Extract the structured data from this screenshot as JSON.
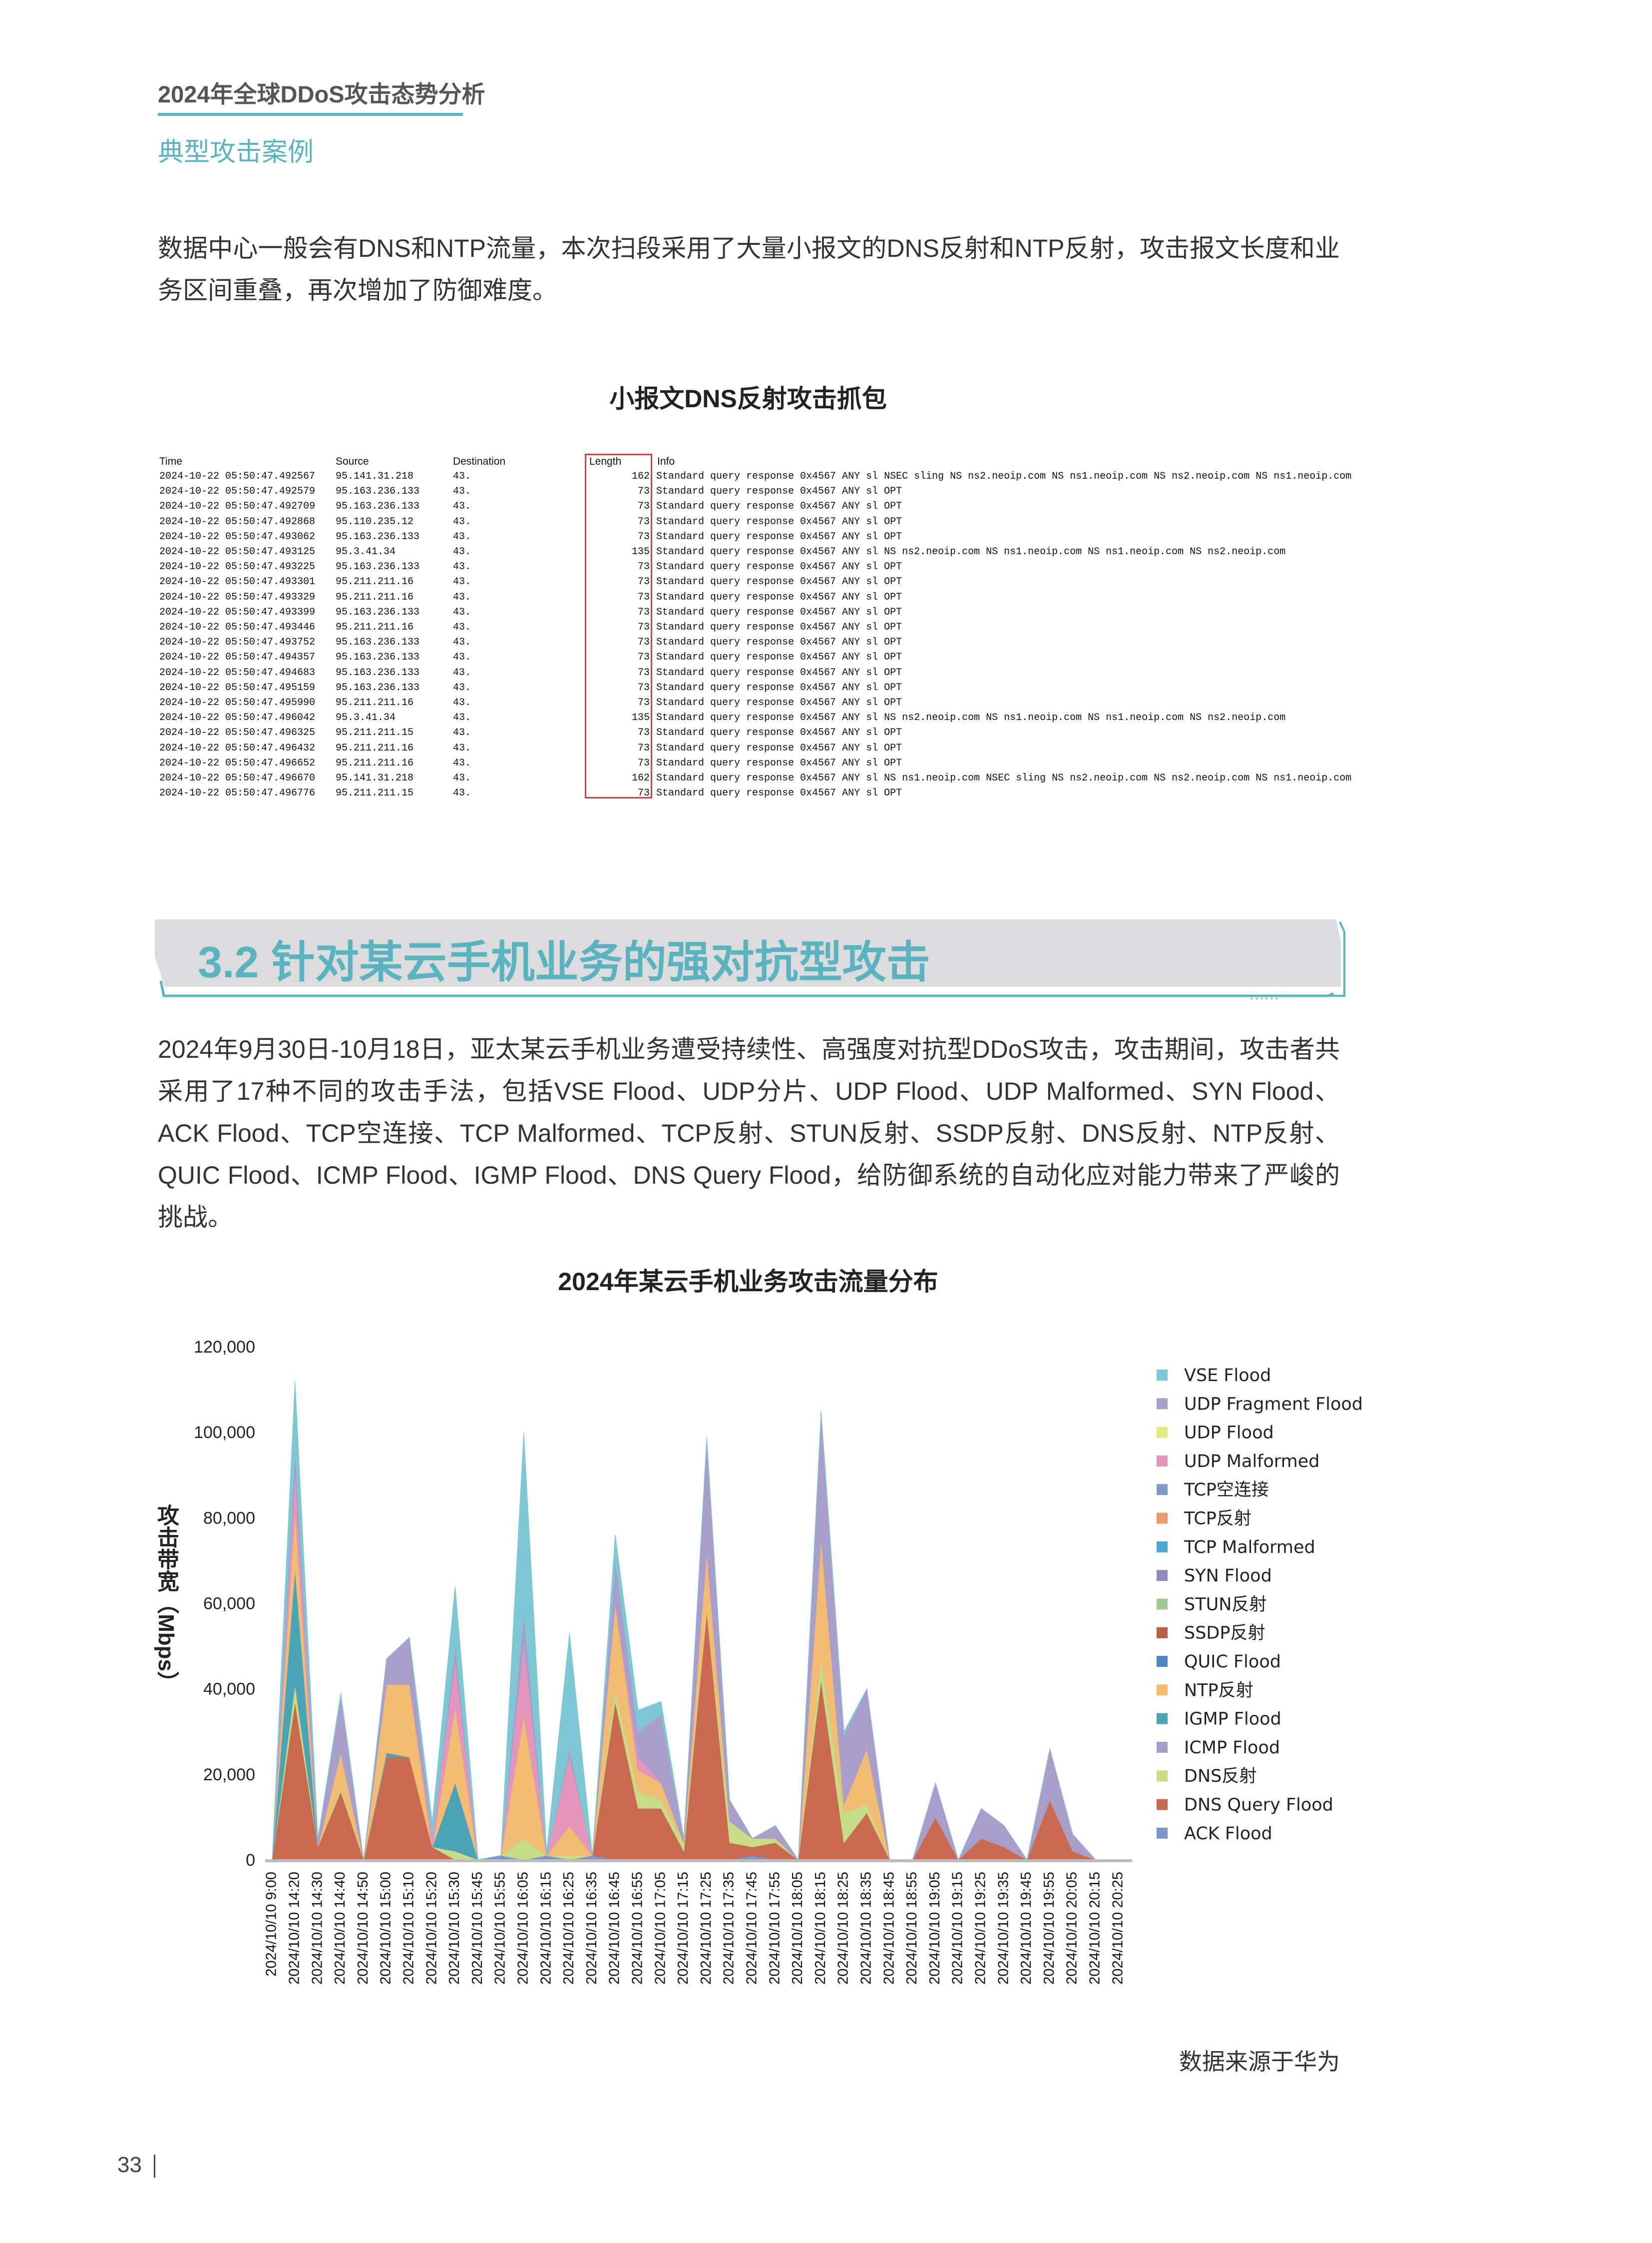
{
  "header": {
    "report_title": "2024年全球DDoS攻击态势分析",
    "section": "典型攻击案例",
    "accent_color": "#5ab4c0"
  },
  "intro_paragraph": "数据中心一般会有DNS和NTP流量，本次扫段采用了大量小报文的DNS反射和NTP反射，攻击报文长度和业务区间重叠，再次增加了防御难度。",
  "capture": {
    "title": "小报文DNS反射攻击抓包",
    "columns": [
      "Time",
      "Source",
      "Destination",
      "Length",
      "Info"
    ],
    "rows": [
      [
        "2024-10-22 05:50:47.492567",
        "95.141.31.218",
        "43.",
        "162",
        "Standard query response 0x4567 ANY sl NSEC sling NS ns2.neoip.com NS ns1.neoip.com NS ns2.neoip.com NS ns1.neoip.com"
      ],
      [
        "2024-10-22 05:50:47.492579",
        "95.163.236.133",
        "43.",
        "73",
        "Standard query response 0x4567 ANY sl OPT"
      ],
      [
        "2024-10-22 05:50:47.492709",
        "95.163.236.133",
        "43.",
        "73",
        "Standard query response 0x4567 ANY sl OPT"
      ],
      [
        "2024-10-22 05:50:47.492868",
        "95.110.235.12",
        "43.",
        "73",
        "Standard query response 0x4567 ANY sl OPT"
      ],
      [
        "2024-10-22 05:50:47.493062",
        "95.163.236.133",
        "43.",
        "73",
        "Standard query response 0x4567 ANY sl OPT"
      ],
      [
        "2024-10-22 05:50:47.493125",
        "95.3.41.34",
        "43.",
        "135",
        "Standard query response 0x4567 ANY sl NS ns2.neoip.com NS ns1.neoip.com NS ns1.neoip.com NS ns2.neoip.com"
      ],
      [
        "2024-10-22 05:50:47.493225",
        "95.163.236.133",
        "43.",
        "73",
        "Standard query response 0x4567 ANY sl OPT"
      ],
      [
        "2024-10-22 05:50:47.493301",
        "95.211.211.16",
        "43.",
        "73",
        "Standard query response 0x4567 ANY sl OPT"
      ],
      [
        "2024-10-22 05:50:47.493329",
        "95.211.211.16",
        "43.",
        "73",
        "Standard query response 0x4567 ANY sl OPT"
      ],
      [
        "2024-10-22 05:50:47.493399",
        "95.163.236.133",
        "43.",
        "73",
        "Standard query response 0x4567 ANY sl OPT"
      ],
      [
        "2024-10-22 05:50:47.493446",
        "95.211.211.16",
        "43.",
        "73",
        "Standard query response 0x4567 ANY sl OPT"
      ],
      [
        "2024-10-22 05:50:47.493752",
        "95.163.236.133",
        "43.",
        "73",
        "Standard query response 0x4567 ANY sl OPT"
      ],
      [
        "2024-10-22 05:50:47.494357",
        "95.163.236.133",
        "43.",
        "73",
        "Standard query response 0x4567 ANY sl OPT"
      ],
      [
        "2024-10-22 05:50:47.494683",
        "95.163.236.133",
        "43.",
        "73",
        "Standard query response 0x4567 ANY sl OPT"
      ],
      [
        "2024-10-22 05:50:47.495159",
        "95.163.236.133",
        "43.",
        "73",
        "Standard query response 0x4567 ANY sl OPT"
      ],
      [
        "2024-10-22 05:50:47.495990",
        "95.211.211.16",
        "43.",
        "73",
        "Standard query response 0x4567 ANY sl OPT"
      ],
      [
        "2024-10-22 05:50:47.496042",
        "95.3.41.34",
        "43.",
        "135",
        "Standard query response 0x4567 ANY sl NS ns2.neoip.com NS ns1.neoip.com NS ns1.neoip.com NS ns2.neoip.com"
      ],
      [
        "2024-10-22 05:50:47.496325",
        "95.211.211.15",
        "43.",
        "73",
        "Standard query response 0x4567 ANY sl OPT"
      ],
      [
        "2024-10-22 05:50:47.496432",
        "95.211.211.16",
        "43.",
        "73",
        "Standard query response 0x4567 ANY sl OPT"
      ],
      [
        "2024-10-22 05:50:47.496652",
        "95.211.211.16",
        "43.",
        "73",
        "Standard query response 0x4567 ANY sl OPT"
      ],
      [
        "2024-10-22 05:50:47.496670",
        "95.141.31.218",
        "43.",
        "162",
        "Standard query response 0x4567 ANY sl NS ns1.neoip.com NSEC sling NS ns2.neoip.com NS ns2.neoip.com NS ns1.neoip.com"
      ],
      [
        "2024-10-22 05:50:47.496776",
        "95.211.211.15",
        "43.",
        "73",
        "Standard query response 0x4567 ANY sl OPT"
      ]
    ],
    "highlight_color": "#e0393e"
  },
  "section_heading": "3.2 针对某云手机业务的强对抗型攻击",
  "body_paragraph": "2024年9月30日-10月18日，亚太某云手机业务遭受持续性、高强度对抗型DDoS攻击，攻击期间，攻击者共采用了17种不同的攻击手法，包括VSE Flood、UDP分片、UDP Flood、UDP Malformed、SYN Flood、ACK Flood、TCP空连接、TCP Malformed、TCP反射、STUN反射、SSDP反射、DNS反射、NTP反射、QUIC Flood、ICMP Flood、IGMP Flood、DNS Query Flood，给防御系统的自动化应对能力带来了严峻的挑战。",
  "chart_data": {
    "type": "area",
    "stacked": true,
    "title": "2024年某云手机业务攻击流量分布",
    "ylabel": "攻击带宽（Mbps）",
    "xlabel": "",
    "ylim": [
      0,
      120000
    ],
    "yticks": [
      "0",
      "20,000",
      "40,000",
      "60,000",
      "80,000",
      "100,000",
      "120,000"
    ],
    "grid": false,
    "legend": "right",
    "categories": [
      "2024/10/10 9:00",
      "2024/10/10 14:20",
      "2024/10/10 14:30",
      "2024/10/10 14:40",
      "2024/10/10 14:50",
      "2024/10/10 15:00",
      "2024/10/10 15:10",
      "2024/10/10 15:20",
      "2024/10/10 15:30",
      "2024/10/10 15:45",
      "2024/10/10 15:55",
      "2024/10/10 16:05",
      "2024/10/10 16:15",
      "2024/10/10 16:25",
      "2024/10/10 16:35",
      "2024/10/10 16:45",
      "2024/10/10 16:55",
      "2024/10/10 17:05",
      "2024/10/10 17:15",
      "2024/10/10 17:25",
      "2024/10/10 17:35",
      "2024/10/10 17:45",
      "2024/10/10 17:55",
      "2024/10/10 18:05",
      "2024/10/10 18:15",
      "2024/10/10 18:25",
      "2024/10/10 18:35",
      "2024/10/10 18:45",
      "2024/10/10 18:55",
      "2024/10/10 19:05",
      "2024/10/10 19:15",
      "2024/10/10 19:25",
      "2024/10/10 19:35",
      "2024/10/10 19:45",
      "2024/10/10 19:55",
      "2024/10/10 20:05",
      "2024/10/10 20:15",
      "2024/10/10 20:25"
    ],
    "series": [
      {
        "name": "VSE Flood",
        "color": "#7ec8d5",
        "values": [
          0,
          16000,
          0,
          1000,
          0,
          0,
          0,
          4000,
          14000,
          0,
          0,
          42000,
          1000,
          27000,
          0,
          6000,
          5000,
          3000,
          0,
          1000,
          0,
          0,
          0,
          0,
          1000,
          1000,
          0,
          0,
          0,
          0,
          0,
          0,
          0,
          0,
          0,
          0,
          0,
          0
        ]
      },
      {
        "name": "UDP Fragment Flood",
        "color": "#a89ec9",
        "values": [
          0,
          6000,
          2000,
          13000,
          0,
          6000,
          11000,
          0,
          4000,
          0,
          0,
          8000,
          0,
          2000,
          0,
          10000,
          6000,
          16000,
          1000,
          26000,
          5000,
          0,
          3000,
          0,
          29000,
          16000,
          14000,
          0,
          0,
          8000,
          0,
          7000,
          5000,
          0,
          12000,
          4000,
          0,
          0
        ]
      },
      {
        "name": "UDP Flood",
        "color": "#e4e67e",
        "values": [
          0,
          0,
          0,
          0,
          0,
          0,
          0,
          0,
          0,
          0,
          0,
          0,
          0,
          0,
          0,
          0,
          0,
          0,
          0,
          0,
          0,
          0,
          0,
          0,
          0,
          0,
          0,
          0,
          0,
          0,
          0,
          0,
          0,
          0,
          0,
          0,
          0,
          0
        ]
      },
      {
        "name": "UDP Malformed",
        "color": "#e595bb",
        "values": [
          0,
          8000,
          0,
          0,
          0,
          0,
          0,
          2000,
          10000,
          0,
          0,
          16000,
          0,
          16000,
          0,
          0,
          3000,
          0,
          0,
          0,
          0,
          0,
          0,
          0,
          0,
          0,
          0,
          0,
          0,
          0,
          0,
          0,
          0,
          0,
          0,
          0,
          0,
          0
        ]
      },
      {
        "name": "TCP空连接",
        "color": "#7f99cb",
        "values": [
          0,
          0,
          0,
          0,
          0,
          0,
          0,
          0,
          0,
          0,
          0,
          0,
          0,
          0,
          0,
          0,
          0,
          0,
          0,
          0,
          0,
          0,
          0,
          0,
          0,
          0,
          0,
          0,
          0,
          0,
          0,
          0,
          0,
          0,
          0,
          0,
          0,
          0
        ]
      },
      {
        "name": "TCP反射",
        "color": "#eb9a69",
        "values": [
          0,
          0,
          0,
          0,
          0,
          0,
          0,
          0,
          0,
          0,
          0,
          0,
          0,
          0,
          0,
          0,
          0,
          0,
          0,
          0,
          0,
          0,
          0,
          0,
          0,
          0,
          0,
          0,
          0,
          0,
          0,
          0,
          0,
          0,
          0,
          0,
          0,
          0
        ]
      },
      {
        "name": "TCP Malformed",
        "color": "#4ea5da",
        "values": [
          0,
          0,
          0,
          0,
          0,
          0,
          0,
          0,
          0,
          0,
          0,
          0,
          0,
          0,
          0,
          0,
          0,
          0,
          0,
          0,
          0,
          0,
          0,
          0,
          0,
          0,
          0,
          0,
          0,
          0,
          0,
          0,
          0,
          0,
          0,
          0,
          0,
          0
        ]
      },
      {
        "name": "SYN Flood",
        "color": "#9089bf",
        "values": [
          0,
          0,
          0,
          0,
          0,
          0,
          0,
          0,
          0,
          0,
          0,
          0,
          0,
          0,
          0,
          0,
          0,
          0,
          0,
          0,
          0,
          0,
          0,
          0,
          0,
          0,
          0,
          0,
          0,
          0,
          0,
          0,
          0,
          0,
          0,
          0,
          0,
          0
        ]
      },
      {
        "name": "STUN反射",
        "color": "#9fcc8e",
        "values": [
          0,
          0,
          0,
          0,
          0,
          0,
          0,
          0,
          0,
          0,
          0,
          0,
          0,
          0,
          0,
          0,
          0,
          0,
          0,
          0,
          0,
          0,
          0,
          0,
          0,
          0,
          0,
          0,
          0,
          0,
          0,
          0,
          0,
          0,
          0,
          0,
          0,
          0
        ]
      },
      {
        "name": "SSDP反射",
        "color": "#b6604b",
        "values": [
          0,
          0,
          0,
          0,
          0,
          0,
          0,
          0,
          0,
          0,
          0,
          0,
          0,
          0,
          0,
          0,
          0,
          0,
          0,
          0,
          0,
          0,
          0,
          0,
          0,
          0,
          0,
          0,
          0,
          0,
          0,
          0,
          0,
          0,
          0,
          0,
          0,
          0
        ]
      },
      {
        "name": "QUIC Flood",
        "color": "#4f86c6",
        "values": [
          0,
          0,
          0,
          0,
          0,
          0,
          0,
          0,
          0,
          0,
          0,
          0,
          0,
          0,
          0,
          0,
          0,
          0,
          0,
          0,
          0,
          0,
          0,
          0,
          0,
          0,
          0,
          0,
          0,
          0,
          0,
          0,
          0,
          0,
          0,
          0,
          0,
          0
        ]
      },
      {
        "name": "NTP反射",
        "color": "#f2bc72",
        "values": [
          0,
          14000,
          0,
          8000,
          0,
          16000,
          17000,
          0,
          18000,
          0,
          0,
          29000,
          0,
          7000,
          0,
          20000,
          5000,
          4000,
          0,
          14000,
          0,
          0,
          0,
          0,
          28000,
          2000,
          13000,
          0,
          0,
          0,
          0,
          0,
          0,
          0,
          0,
          0,
          0,
          0
        ]
      },
      {
        "name": "IGMP Flood",
        "color": "#4aa4b5",
        "values": [
          0,
          27000,
          0,
          0,
          0,
          1000,
          0,
          0,
          16000,
          0,
          0,
          0,
          0,
          0,
          0,
          0,
          0,
          0,
          0,
          0,
          0,
          0,
          0,
          0,
          0,
          0,
          0,
          0,
          0,
          0,
          0,
          0,
          0,
          0,
          0,
          0,
          0,
          0
        ]
      },
      {
        "name": "ICMP Flood",
        "color": "#a19cca",
        "values": [
          0,
          0,
          0,
          0,
          0,
          0,
          0,
          0,
          0,
          0,
          0,
          0,
          0,
          0,
          0,
          0,
          0,
          0,
          0,
          0,
          0,
          0,
          0,
          0,
          0,
          0,
          0,
          0,
          0,
          0,
          0,
          0,
          0,
          0,
          0,
          0,
          0,
          0
        ]
      },
      {
        "name": "DNS反射",
        "color": "#c8dc86",
        "values": [
          0,
          4000,
          0,
          1000,
          0,
          0,
          0,
          0,
          2000,
          0,
          0,
          5000,
          0,
          1000,
          0,
          3000,
          4000,
          2000,
          2000,
          0,
          5000,
          2000,
          1000,
          0,
          5000,
          7000,
          2000,
          0,
          0,
          0,
          0,
          0,
          0,
          0,
          0,
          0,
          0,
          0
        ]
      },
      {
        "name": "DNS Query Flood",
        "color": "#c96a50",
        "values": [
          0,
          37000,
          3000,
          16000,
          0,
          24000,
          24000,
          3000,
          0,
          0,
          0,
          0,
          0,
          0,
          0,
          37000,
          12000,
          12000,
          2000,
          58000,
          4000,
          2000,
          4000,
          0,
          42000,
          4000,
          11000,
          0,
          0,
          10000,
          0,
          5000,
          3000,
          0,
          14000,
          2000,
          0,
          0
        ]
      },
      {
        "name": "ACK Flood",
        "color": "#7b96ca",
        "values": [
          0,
          0,
          0,
          0,
          0,
          0,
          0,
          0,
          0,
          0,
          1000,
          0,
          1000,
          0,
          1000,
          0,
          0,
          0,
          0,
          0,
          0,
          1000,
          0,
          0,
          0,
          0,
          0,
          0,
          0,
          0,
          0,
          0,
          0,
          0,
          0,
          0,
          0,
          0
        ]
      }
    ]
  },
  "source_note": "数据来源于华为",
  "page_number": "33"
}
